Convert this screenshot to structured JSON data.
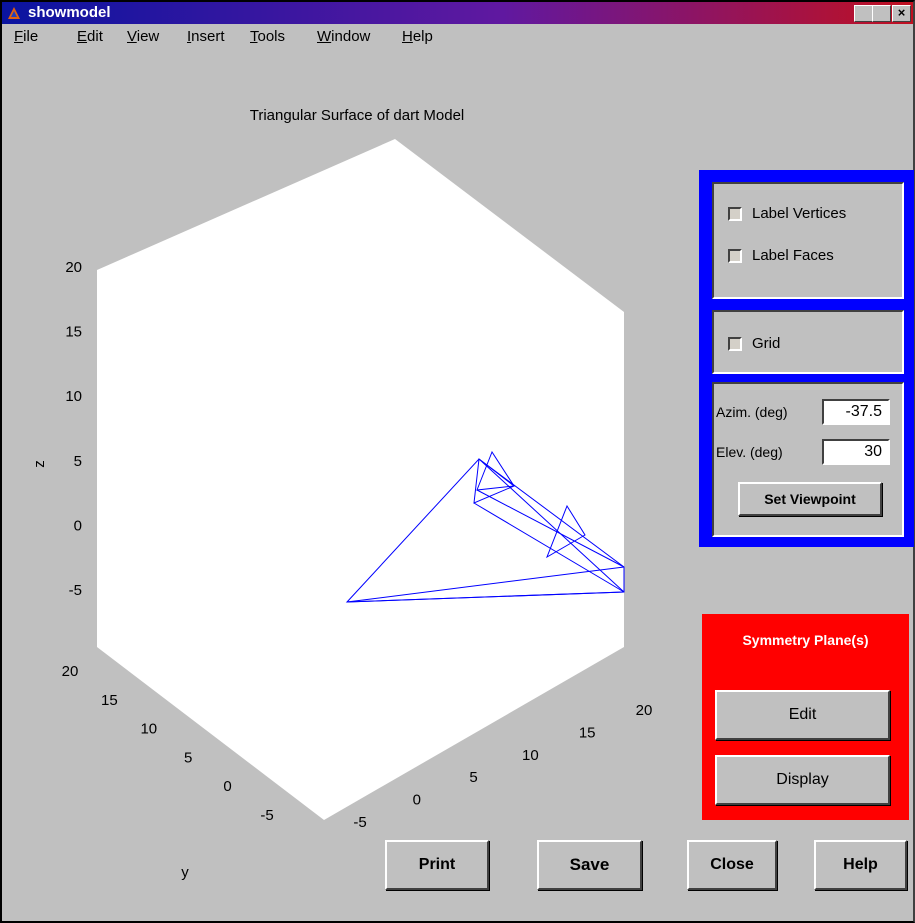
{
  "window": {
    "title": "showmodel"
  },
  "menu": [
    "File",
    "Edit",
    "View",
    "Insert",
    "Tools",
    "Window",
    "Help"
  ],
  "plot": {
    "title": "Triangular Surface of dart Model",
    "zlabel": "z",
    "ylabel": "y",
    "zticks": [
      20,
      15,
      10,
      5,
      0,
      -5
    ],
    "yticks": [
      20,
      15,
      10,
      5,
      0,
      -5
    ],
    "xticks": [
      -5,
      0,
      5,
      10,
      15,
      20
    ]
  },
  "options": {
    "label_vertices": "Label Vertices",
    "label_faces": "Label Faces",
    "grid": "Grid"
  },
  "view": {
    "azimuth_label": "Azim. (deg)",
    "azimuth": -37.5,
    "elevation_label": "Elev. (deg)",
    "elevation": 30,
    "button": "Set Viewpoint"
  },
  "symmetry": {
    "title": "Symmetry Plane(s)",
    "buttons": [
      "Edit",
      "Display"
    ]
  },
  "buttons": [
    "Print",
    "Save",
    "Close",
    "Help"
  ]
}
